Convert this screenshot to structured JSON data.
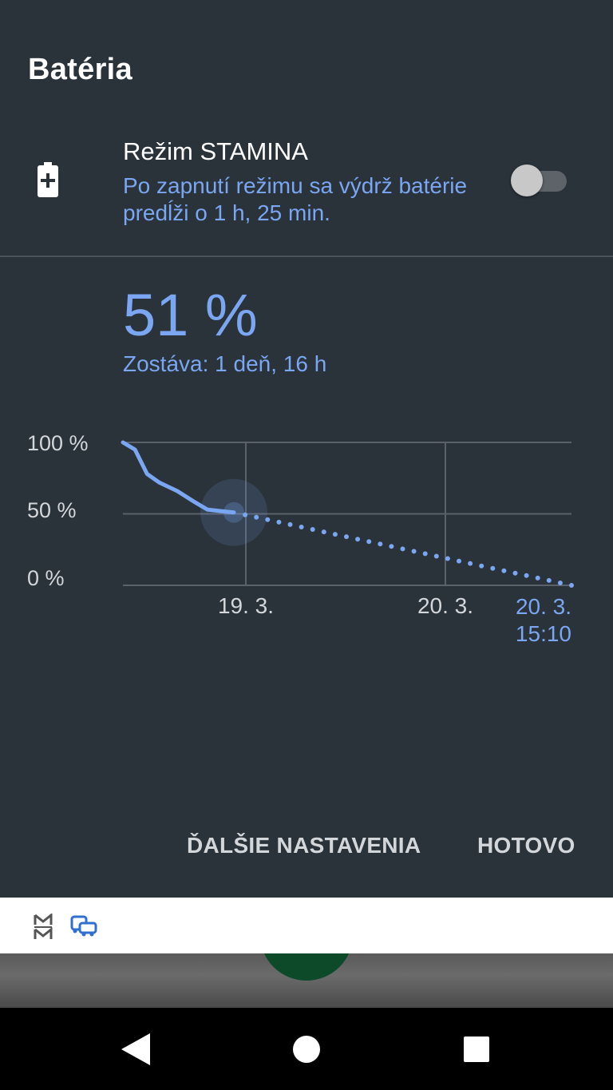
{
  "dialog": {
    "title": "Batéria",
    "stamina": {
      "title": "Režim STAMINA",
      "subtitle": "Po zapnutí režimu sa výdrž batérie predĺži o 1 h, 25 min.",
      "enabled": false
    },
    "level": "51 %",
    "remaining": "Zostáva: 1 deň, 16 h",
    "actions": {
      "more_settings": "ĎALŠIE NASTAVENIA",
      "done": "HOTOVO"
    }
  },
  "chart_data": {
    "type": "line",
    "y_tick_labels": [
      "100 %",
      "50 %",
      "0 %"
    ],
    "x_tick_labels": [
      "19. 3.",
      "20. 3."
    ],
    "end_label": [
      "20. 3.",
      "15:10"
    ],
    "ylim": [
      0,
      100
    ],
    "series": [
      {
        "style": "solid",
        "color": "#7aa6f2",
        "x": [
          0,
          0.1,
          0.2,
          0.3,
          0.45,
          0.6,
          0.7,
          0.8,
          0.92
        ],
        "y": [
          100,
          95,
          78,
          72,
          66,
          58,
          53,
          52,
          51
        ]
      },
      {
        "style": "dotted",
        "color": "#7aa6f2",
        "x": [
          0.92,
          3.6
        ],
        "y": [
          51,
          0
        ]
      }
    ],
    "current_marker": {
      "x": 0.92,
      "y": 51
    },
    "grid": true
  },
  "bottom_app_bar": {
    "icons": [
      "mm-logo-icon",
      "transport-icon"
    ]
  },
  "navbar": {
    "icons": [
      "back-icon",
      "home-icon",
      "recents-icon"
    ]
  },
  "colors": {
    "background": "#2a323a",
    "accent": "#7aa6f2",
    "text": "#ffffff",
    "secondary_text": "#d4d7da"
  }
}
